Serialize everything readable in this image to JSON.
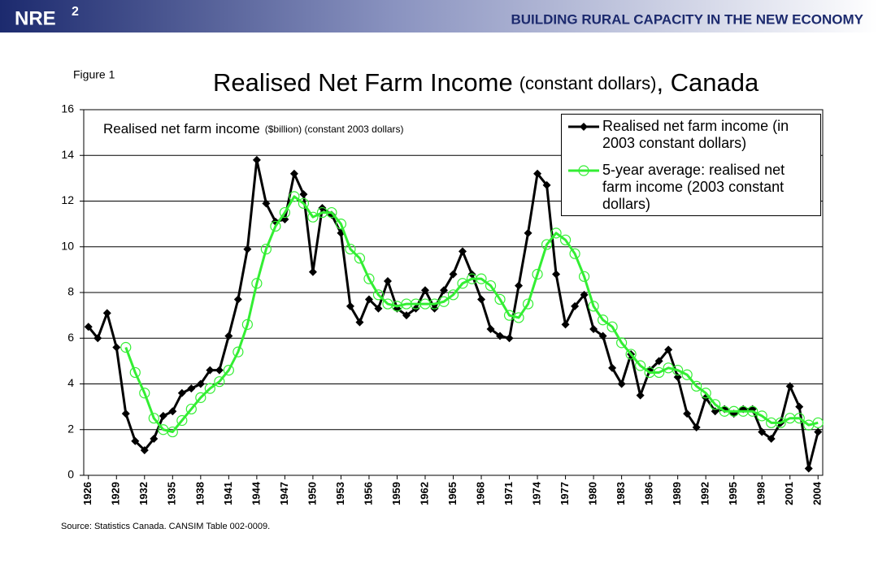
{
  "header": {
    "logo": "NRE",
    "logo_sup": "2",
    "tagline": "BUILDING RURAL CAPACITY IN THE NEW ECONOMY"
  },
  "figure_label": "Figure 1",
  "source": "Source: Statistics Canada. CANSIM Table 002-0009.",
  "chart_data": {
    "type": "line",
    "title": {
      "main": "Realised Net Farm Income",
      "note": "(constant dollars)",
      "tail": ", Canada"
    },
    "y_label": {
      "main": "Realised net farm income",
      "note": "($billion) (constant 2003 dollars)"
    },
    "x": [
      1926,
      1927,
      1928,
      1929,
      1930,
      1931,
      1932,
      1933,
      1934,
      1935,
      1936,
      1937,
      1938,
      1939,
      1940,
      1941,
      1942,
      1943,
      1944,
      1945,
      1946,
      1947,
      1948,
      1949,
      1950,
      1951,
      1952,
      1953,
      1954,
      1955,
      1956,
      1957,
      1958,
      1959,
      1960,
      1961,
      1962,
      1963,
      1964,
      1965,
      1966,
      1967,
      1968,
      1969,
      1970,
      1971,
      1972,
      1973,
      1974,
      1975,
      1976,
      1977,
      1978,
      1979,
      1980,
      1981,
      1982,
      1983,
      1984,
      1985,
      1986,
      1987,
      1988,
      1989,
      1990,
      1991,
      1992,
      1993,
      1994,
      1995,
      1996,
      1997,
      1998,
      1999,
      2000,
      2001,
      2002,
      2003,
      2004
    ],
    "series": [
      {
        "name": "Realised net farm income (in 2003 constant dollars)",
        "color": "#000000",
        "marker": "diamond",
        "values": [
          6.5,
          6.0,
          7.1,
          5.6,
          2.7,
          1.5,
          1.1,
          1.6,
          2.6,
          2.8,
          3.6,
          3.8,
          4.0,
          4.6,
          4.6,
          6.1,
          7.7,
          9.9,
          13.8,
          11.9,
          11.1,
          11.2,
          13.2,
          12.3,
          8.9,
          11.7,
          11.4,
          10.6,
          7.4,
          6.7,
          7.7,
          7.3,
          8.5,
          7.3,
          7.0,
          7.3,
          8.1,
          7.3,
          8.1,
          8.8,
          9.8,
          8.8,
          7.7,
          6.4,
          6.1,
          6.0,
          8.3,
          10.6,
          13.2,
          12.7,
          8.8,
          6.6,
          7.4,
          7.9,
          6.4,
          6.1,
          4.7,
          4.0,
          5.3,
          3.5,
          4.6,
          5.0,
          5.5,
          4.3,
          2.7,
          2.1,
          3.4,
          2.8,
          2.9,
          2.7,
          2.9,
          2.9,
          1.9,
          1.6,
          2.3,
          3.9,
          3.0,
          0.3,
          1.9
        ]
      },
      {
        "name": "5-year average: realised net farm income (2003 constant dollars)",
        "color": "#33ee33",
        "marker": "circle",
        "values": [
          null,
          null,
          null,
          null,
          5.6,
          4.5,
          3.6,
          2.5,
          2.0,
          1.9,
          2.4,
          2.9,
          3.4,
          3.8,
          4.1,
          4.6,
          5.4,
          6.6,
          8.4,
          9.9,
          10.9,
          11.5,
          12.2,
          11.9,
          11.3,
          11.5,
          11.5,
          11.0,
          9.9,
          9.5,
          8.6,
          7.9,
          7.5,
          7.4,
          7.5,
          7.5,
          7.5,
          7.5,
          7.6,
          7.9,
          8.4,
          8.6,
          8.6,
          8.3,
          7.7,
          7.0,
          6.9,
          7.5,
          8.8,
          10.1,
          10.6,
          10.3,
          9.7,
          8.7,
          7.4,
          6.8,
          6.5,
          5.8,
          5.3,
          4.8,
          4.5,
          4.5,
          4.7,
          4.6,
          4.4,
          3.9,
          3.6,
          3.1,
          2.8,
          2.8,
          2.8,
          2.8,
          2.6,
          2.3,
          2.3,
          2.5,
          2.5,
          2.2,
          2.3
        ]
      }
    ],
    "xlim": [
      1925.5,
      2004.5
    ],
    "xticks": [
      1926,
      1929,
      1932,
      1935,
      1938,
      1941,
      1944,
      1947,
      1950,
      1953,
      1956,
      1959,
      1962,
      1965,
      1968,
      1971,
      1974,
      1977,
      1980,
      1983,
      1986,
      1989,
      1992,
      1995,
      1998,
      2001,
      2004
    ],
    "ylim": [
      0,
      16
    ],
    "yticks": [
      0,
      2,
      4,
      6,
      8,
      10,
      12,
      14,
      16
    ],
    "grid": true,
    "legend": "top-right"
  }
}
